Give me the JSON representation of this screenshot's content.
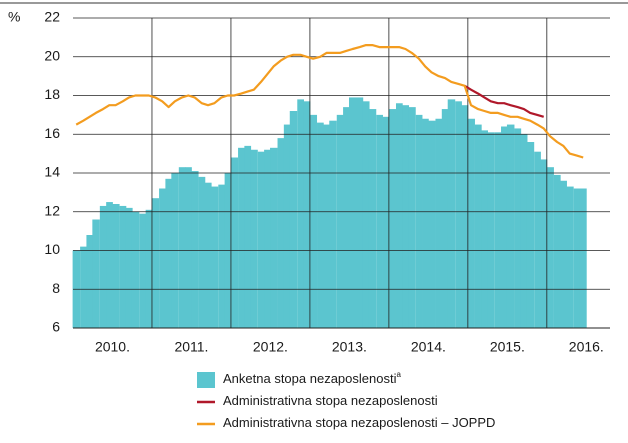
{
  "chart_data": {
    "type": "combo",
    "y_label": "%",
    "x": [
      2010.04,
      2010.13,
      2010.21,
      2010.29,
      2010.38,
      2010.46,
      2010.54,
      2010.63,
      2010.71,
      2010.79,
      2010.88,
      2010.96,
      2011.04,
      2011.13,
      2011.21,
      2011.29,
      2011.38,
      2011.46,
      2011.54,
      2011.63,
      2011.71,
      2011.79,
      2011.88,
      2011.96,
      2012.04,
      2012.13,
      2012.21,
      2012.29,
      2012.38,
      2012.46,
      2012.54,
      2012.63,
      2012.71,
      2012.79,
      2012.88,
      2012.96,
      2013.04,
      2013.13,
      2013.21,
      2013.29,
      2013.38,
      2013.46,
      2013.54,
      2013.63,
      2013.71,
      2013.79,
      2013.88,
      2013.96,
      2014.04,
      2014.13,
      2014.21,
      2014.29,
      2014.38,
      2014.46,
      2014.54,
      2014.63,
      2014.71,
      2014.79,
      2014.88,
      2014.96,
      2015.04,
      2015.13,
      2015.21,
      2015.29,
      2015.38,
      2015.46,
      2015.54,
      2015.63,
      2015.71,
      2015.79,
      2015.88,
      2015.96,
      2016.04,
      2016.13,
      2016.21,
      2016.29,
      2016.38,
      2016.46
    ],
    "series": [
      {
        "name": "Anketna stopa nezaposlenosti",
        "note_mark": "a",
        "kind": "bar",
        "color": "#5bc5cf",
        "values": [
          10.0,
          10.2,
          10.8,
          11.6,
          12.3,
          12.5,
          12.4,
          12.3,
          12.2,
          12.0,
          11.9,
          12.1,
          12.7,
          13.2,
          13.7,
          14.0,
          14.3,
          14.3,
          14.1,
          13.8,
          13.5,
          13.3,
          13.4,
          14.0,
          14.8,
          15.3,
          15.4,
          15.2,
          15.1,
          15.2,
          15.3,
          15.8,
          16.5,
          17.2,
          17.8,
          17.7,
          17.0,
          16.6,
          16.5,
          16.7,
          17.0,
          17.4,
          17.9,
          17.9,
          17.7,
          17.3,
          17.0,
          16.9,
          17.3,
          17.6,
          17.5,
          17.4,
          17.0,
          16.8,
          16.7,
          16.8,
          17.3,
          17.8,
          17.7,
          17.5,
          16.8,
          16.5,
          16.2,
          16.1,
          16.1,
          16.4,
          16.5,
          16.3,
          16.0,
          15.6,
          15.1,
          14.7,
          14.3,
          13.9,
          13.6,
          13.3,
          13.2,
          13.2
        ]
      },
      {
        "name": "Administrativna stopa nezaposlenosti",
        "kind": "line",
        "color": "#b0182a",
        "values": [
          null,
          null,
          null,
          null,
          null,
          null,
          null,
          null,
          null,
          null,
          null,
          null,
          null,
          null,
          null,
          null,
          null,
          null,
          null,
          null,
          null,
          null,
          null,
          null,
          null,
          null,
          null,
          null,
          null,
          null,
          null,
          null,
          null,
          null,
          null,
          null,
          null,
          null,
          null,
          null,
          null,
          null,
          null,
          null,
          null,
          null,
          null,
          null,
          null,
          null,
          null,
          null,
          null,
          null,
          null,
          null,
          null,
          null,
          null,
          18.5,
          18.3,
          18.1,
          17.9,
          17.7,
          17.6,
          17.6,
          17.5,
          17.4,
          17.3,
          17.1,
          17.0,
          16.9,
          null,
          null,
          null,
          null,
          null,
          null
        ]
      },
      {
        "name": "Administrativna stopa nezaposlenosti – JOPPD",
        "kind": "line",
        "color": "#f39c1f",
        "values": [
          16.5,
          16.7,
          16.9,
          17.1,
          17.3,
          17.5,
          17.5,
          17.7,
          17.9,
          18.0,
          18.0,
          18.0,
          17.9,
          17.7,
          17.4,
          17.7,
          17.9,
          18.0,
          17.9,
          17.6,
          17.5,
          17.6,
          17.9,
          18.0,
          18.0,
          18.1,
          18.2,
          18.3,
          18.7,
          19.1,
          19.5,
          19.8,
          20.0,
          20.1,
          20.1,
          20.0,
          19.9,
          20.0,
          20.2,
          20.2,
          20.2,
          20.3,
          20.4,
          20.5,
          20.6,
          20.6,
          20.5,
          20.5,
          20.5,
          20.5,
          20.4,
          20.2,
          19.9,
          19.5,
          19.2,
          19.0,
          18.9,
          18.7,
          18.6,
          18.5,
          17.5,
          17.3,
          17.2,
          17.1,
          17.1,
          17.0,
          16.9,
          16.9,
          16.8,
          16.7,
          16.5,
          16.3,
          15.9,
          15.6,
          15.4,
          15.0,
          14.9,
          14.8
        ]
      }
    ],
    "xlim": [
      2010,
      2016.8
    ],
    "xticks": [
      {
        "value": 2010.5,
        "label": "2010."
      },
      {
        "value": 2011.5,
        "label": "2011."
      },
      {
        "value": 2012.5,
        "label": "2012."
      },
      {
        "value": 2013.5,
        "label": "2013."
      },
      {
        "value": 2014.5,
        "label": "2014."
      },
      {
        "value": 2015.5,
        "label": "2015."
      },
      {
        "value": 2016.5,
        "label": "2016."
      }
    ],
    "xgrid": [
      2011,
      2012,
      2013,
      2014,
      2015,
      2016
    ],
    "ylim": [
      6,
      22
    ],
    "yticks": [
      6,
      8,
      10,
      12,
      14,
      16,
      18,
      20,
      22
    ],
    "grid": true,
    "legend": "bottom"
  }
}
